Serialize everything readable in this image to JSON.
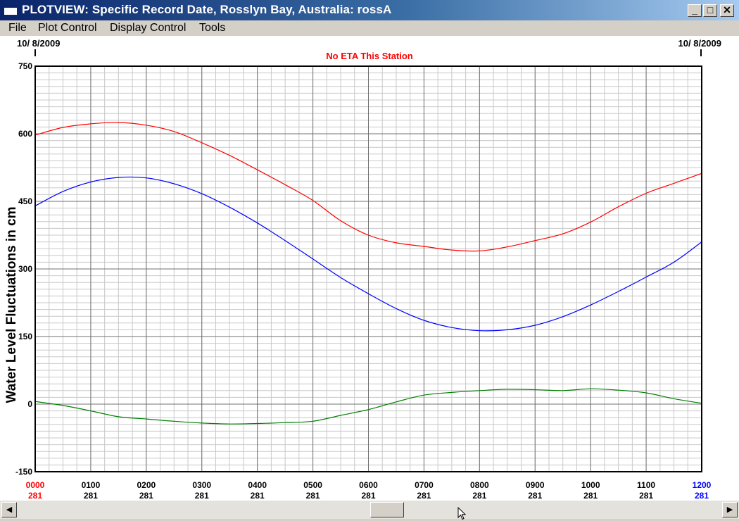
{
  "window": {
    "title": "PLOTVIEW: Specific Record Date, Rosslyn Bay, Australia: rossA",
    "buttons": {
      "minimize": "_",
      "maximize": "□",
      "close": "✕"
    }
  },
  "menu": {
    "items": [
      {
        "label": "File"
      },
      {
        "label": "Plot Control"
      },
      {
        "label": "Display Control"
      },
      {
        "label": "Tools"
      }
    ]
  },
  "plot": {
    "date_left": "10/ 8/2009",
    "date_right": "10/ 8/2009",
    "subtitle": "No ETA This Station",
    "ylabel": "Water Level Fluctuations in cm",
    "colors": {
      "observed": "#ff0000",
      "predicted": "#0000ff",
      "residual": "#008000",
      "subtitle": "#ff0000",
      "start_tick": "#ff0000",
      "end_tick": "#0000ff"
    }
  },
  "chart_data": {
    "type": "line",
    "title": "No ETA This Station",
    "xlabel": "",
    "ylabel": "Water Level Fluctuations in cm",
    "ylim": [
      -150,
      750
    ],
    "yticks": [
      -150,
      0,
      150,
      300,
      450,
      600,
      750
    ],
    "xlim": [
      0,
      12
    ],
    "xtick_labels": [
      {
        "time": "0000",
        "day": "281"
      },
      {
        "time": "0100",
        "day": "281"
      },
      {
        "time": "0200",
        "day": "281"
      },
      {
        "time": "0300",
        "day": "281"
      },
      {
        "time": "0400",
        "day": "281"
      },
      {
        "time": "0500",
        "day": "281"
      },
      {
        "time": "0600",
        "day": "281"
      },
      {
        "time": "0700",
        "day": "281"
      },
      {
        "time": "0800",
        "day": "281"
      },
      {
        "time": "0900",
        "day": "281"
      },
      {
        "time": "1000",
        "day": "281"
      },
      {
        "time": "1100",
        "day": "281"
      },
      {
        "time": "1200",
        "day": "281"
      }
    ],
    "grid": true,
    "series": [
      {
        "key": "observed",
        "color": "#ff0000",
        "x": [
          0,
          0.5,
          1,
          1.5,
          2,
          2.5,
          3,
          3.5,
          4,
          4.5,
          5,
          5.5,
          6,
          6.5,
          7,
          7.5,
          8,
          8.5,
          9,
          9.5,
          10,
          10.5,
          11,
          11.5,
          12
        ],
        "values": [
          597,
          614,
          622,
          625,
          619,
          605,
          580,
          552,
          520,
          487,
          452,
          407,
          375,
          358,
          350,
          342,
          340,
          349,
          363,
          378,
          404,
          438,
          468,
          490,
          512
        ]
      },
      {
        "key": "predicted",
        "color": "#0000ff",
        "x": [
          0,
          0.5,
          1,
          1.5,
          2,
          2.5,
          3,
          3.5,
          4,
          4.5,
          5,
          5.5,
          6,
          6.5,
          7,
          7.5,
          8,
          8.5,
          9,
          9.5,
          10,
          10.5,
          11,
          11.5,
          12
        ],
        "values": [
          440,
          472,
          493,
          503,
          502,
          489,
          467,
          437,
          402,
          363,
          322,
          281,
          245,
          212,
          186,
          170,
          163,
          165,
          175,
          194,
          220,
          250,
          282,
          315,
          360
        ]
      },
      {
        "key": "residual",
        "color": "#008000",
        "x": [
          0,
          0.5,
          1,
          1.5,
          2,
          2.5,
          3,
          3.5,
          4,
          4.5,
          5,
          5.5,
          6,
          6.5,
          7,
          7.5,
          8,
          8.5,
          9,
          9.5,
          10,
          10.5,
          11,
          11.5,
          12
        ],
        "values": [
          6,
          -3,
          -15,
          -28,
          -33,
          -38,
          -42,
          -44,
          -43,
          -41,
          -38,
          -25,
          -12,
          5,
          20,
          26,
          30,
          33,
          32,
          30,
          34,
          31,
          25,
          12,
          2
        ]
      }
    ]
  },
  "scrollbar": {
    "left_arrow": "◀",
    "right_arrow": "▶"
  }
}
